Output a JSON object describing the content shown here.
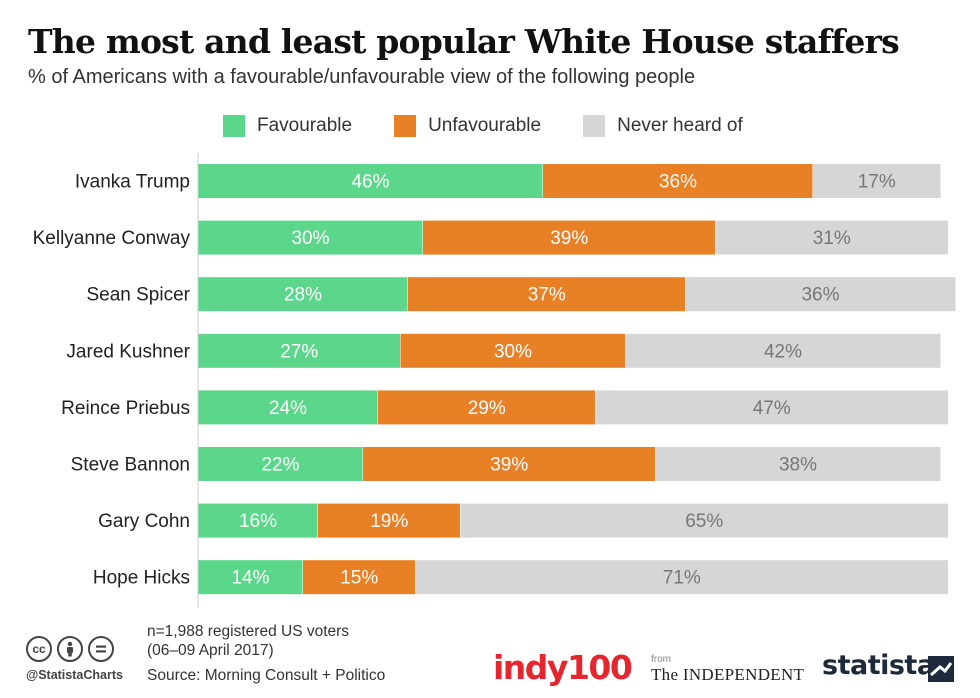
{
  "header": {
    "title": "The most and least popular White House staffers",
    "subtitle": "% of Americans with a favourable/unfavourable view of the following people"
  },
  "colors": {
    "favourable": "#5cd68b",
    "unfavourable": "#e88025",
    "never_heard": "#d6d6d6",
    "label_on_color": "#ffffff",
    "label_on_grey": "#777777"
  },
  "legend": [
    {
      "label": "Favourable",
      "color": "#5cd68b"
    },
    {
      "label": "Unfavourable",
      "color": "#e88025"
    },
    {
      "label": "Never heard of",
      "color": "#d6d6d6"
    }
  ],
  "chart_data": {
    "type": "bar",
    "orientation": "horizontal",
    "stacked": true,
    "categories": [
      "Ivanka Trump",
      "Kellyanne Conway",
      "Sean Spicer",
      "Jared Kushner",
      "Reince Priebus",
      "Steve Bannon",
      "Gary Cohn",
      "Hope Hicks"
    ],
    "series": [
      {
        "name": "Favourable",
        "values": [
          46,
          30,
          28,
          27,
          24,
          22,
          16,
          14
        ]
      },
      {
        "name": "Unfavourable",
        "values": [
          36,
          39,
          37,
          30,
          29,
          39,
          19,
          15
        ]
      },
      {
        "name": "Never heard of",
        "values": [
          17,
          31,
          36,
          42,
          47,
          38,
          65,
          71
        ]
      }
    ],
    "value_suffix": "%",
    "legend_position": "top",
    "grid": false
  },
  "footer": {
    "note_line1": "n=1,988 registered US voters",
    "note_line2": "(06–09 April 2017)",
    "source": "Source: Morning Consult + Politico",
    "handle": "@StatistaCharts",
    "cc_icons": [
      "creative-commons-icon",
      "attribution-icon",
      "no-derivatives-icon"
    ],
    "logo_indy": "indy100",
    "logo_from": "from",
    "logo_independent": "The INDEPENDENT",
    "logo_statista": "statista"
  }
}
